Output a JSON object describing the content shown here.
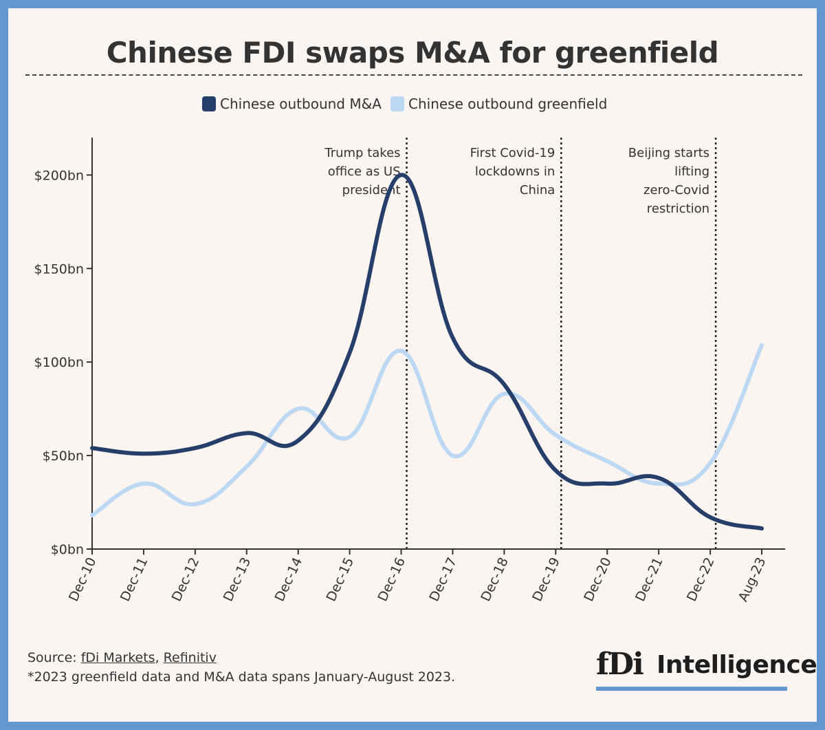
{
  "title": "Chinese FDI swaps M&A for greenfield",
  "colors": {
    "frame": "#6397cf",
    "background": "#fbf5f1",
    "ma": "#263f6a",
    "greenfield": "#bcd8f2"
  },
  "chart_data": {
    "type": "line",
    "title": "Chinese FDI swaps M&A for greenfield",
    "categories": [
      "Dec-10",
      "Dec-11",
      "Dec-12",
      "Dec-13",
      "Dec-14",
      "Dec-15",
      "Dec-16",
      "Dec-17",
      "Dec-18",
      "Dec-19",
      "Dec-20",
      "Dec-21",
      "Dec-22",
      "Aug-23"
    ],
    "y_ticks": [
      "$0bn",
      "$50bn",
      "$100bn",
      "$150bn",
      "$200bn"
    ],
    "y_tick_values": [
      0,
      50,
      100,
      150,
      200
    ],
    "ylim": [
      0,
      220
    ],
    "series": [
      {
        "name": "Chinese outbound M&A",
        "color": "#263f6a",
        "values": [
          54,
          51,
          54,
          62,
          58,
          105,
          200,
          113,
          88,
          42,
          35,
          38,
          17,
          11
        ]
      },
      {
        "name": "Chinese outbound greenfield",
        "color": "#bcd8f2",
        "values": [
          18,
          35,
          24,
          44,
          75,
          60,
          106,
          50,
          83,
          61,
          47,
          35,
          46,
          109
        ]
      }
    ],
    "annotations": [
      {
        "after": "Dec-16",
        "lines": [
          "Trump takes",
          "office as US",
          "president"
        ]
      },
      {
        "after": "Dec-19",
        "lines": [
          "First Covid-19",
          "lockdowns in",
          "China"
        ]
      },
      {
        "after": "Dec-22",
        "lines": [
          "Beijing starts",
          "lifting",
          "zero-Covid",
          "restriction"
        ]
      }
    ],
    "legend_position": "top-center"
  },
  "footer": {
    "source_prefix": "Source: ",
    "source_1": "fDi Markets",
    "source_sep": ", ",
    "source_2": "Refinitiv",
    "note": "*2023 greenfield data and M&A data spans January-August 2023."
  },
  "logo": {
    "mark": "fDi",
    "word": "Intelligence"
  }
}
